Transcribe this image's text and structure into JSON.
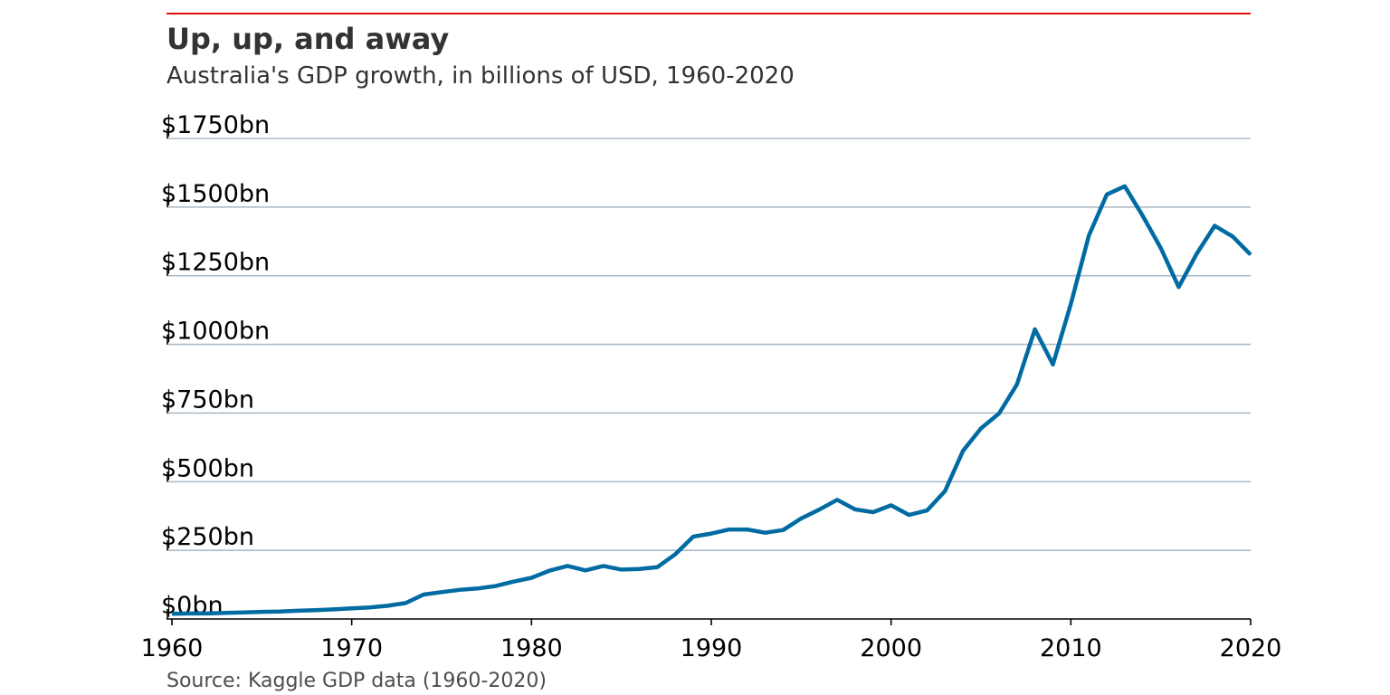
{
  "colors": {
    "accent_rule": "#e3120b",
    "line": "#006ba2",
    "grid": "#aebbc8",
    "axis": "#000000",
    "text": "#333333"
  },
  "chart_data": {
    "type": "line",
    "title": "Up, up, and away",
    "subtitle": "Australia's GDP growth, in billions of USD, 1960-2020",
    "source": "Source: Kaggle GDP data (1960-2020)",
    "xlim": [
      1960,
      2020
    ],
    "ylim": [
      0,
      1750
    ],
    "x_ticks": [
      1960,
      1970,
      1980,
      1990,
      2000,
      2010,
      2020
    ],
    "x_tick_labels": [
      "1960",
      "1970",
      "1980",
      "1990",
      "2000",
      "2010",
      "2020"
    ],
    "y_ticks": [
      0,
      250,
      500,
      750,
      1000,
      1250,
      1500,
      1750
    ],
    "y_tick_labels": [
      "$0bn",
      "$250bn",
      "$500bn",
      "$750bn",
      "$1000bn",
      "$1250bn",
      "$1500bn",
      "$1750bn"
    ],
    "grid": "horizontal",
    "legend": "none",
    "x": [
      1960,
      1961,
      1962,
      1963,
      1964,
      1965,
      1966,
      1967,
      1968,
      1969,
      1970,
      1971,
      1972,
      1973,
      1974,
      1975,
      1976,
      1977,
      1978,
      1979,
      1980,
      1981,
      1982,
      1983,
      1984,
      1985,
      1986,
      1987,
      1988,
      1989,
      1990,
      1991,
      1992,
      1993,
      1994,
      1995,
      1996,
      1997,
      1998,
      1999,
      2000,
      2001,
      2002,
      2003,
      2004,
      2005,
      2006,
      2007,
      2008,
      2009,
      2010,
      2011,
      2012,
      2013,
      2014,
      2015,
      2016,
      2017,
      2018,
      2019,
      2020
    ],
    "values": [
      19,
      20,
      20,
      22,
      24,
      26,
      27,
      30,
      32,
      35,
      39,
      42,
      48,
      58,
      89,
      98,
      106,
      111,
      120,
      136,
      150,
      176,
      193,
      177,
      193,
      180,
      182,
      189,
      236,
      300,
      311,
      326,
      326,
      314,
      324,
      366,
      398,
      434,
      399,
      389,
      414,
      379,
      395,
      466,
      612,
      694,
      748,
      854,
      1055,
      927,
      1147,
      1396,
      1546,
      1576,
      1468,
      1351,
      1209,
      1330,
      1432,
      1393,
      1327
    ]
  }
}
